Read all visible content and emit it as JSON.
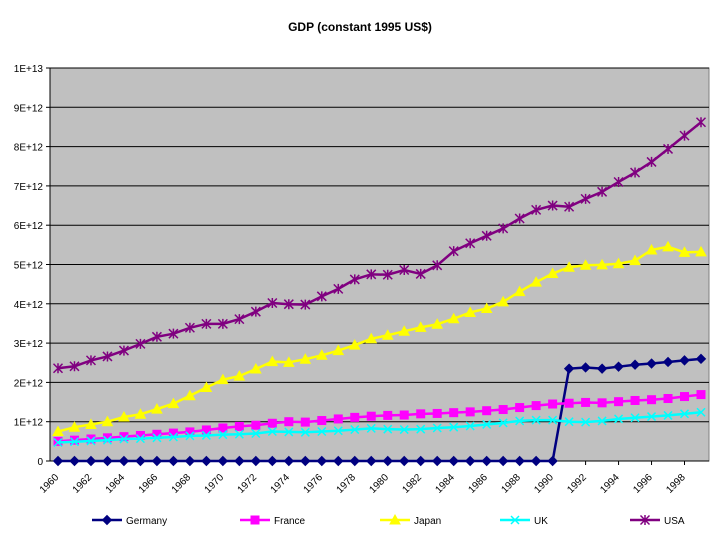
{
  "chart_data": {
    "type": "line",
    "title": "GDP (constant 1995 US$)",
    "xlabel": "",
    "ylabel": "",
    "ylim": [
      0,
      10000000000000
    ],
    "y_tick_labels": [
      "0",
      "1E+12",
      "2E+12",
      "3E+12",
      "4E+12",
      "5E+12",
      "6E+12",
      "7E+12",
      "8E+12",
      "9E+12",
      "1E+13"
    ],
    "x_tick_labels": [
      "1960",
      "1962",
      "1964",
      "1966",
      "1968",
      "1970",
      "1972",
      "1974",
      "1976",
      "1978",
      "1980",
      "1982",
      "1984",
      "1986",
      "1988",
      "1990",
      "1992",
      "1994",
      "1996",
      "1998"
    ],
    "grid": "horizontal",
    "legend_position": "bottom",
    "x": [
      1960,
      1961,
      1962,
      1963,
      1964,
      1965,
      1966,
      1967,
      1968,
      1969,
      1970,
      1971,
      1972,
      1973,
      1974,
      1975,
      1976,
      1977,
      1978,
      1979,
      1980,
      1981,
      1982,
      1983,
      1984,
      1985,
      1986,
      1987,
      1988,
      1989,
      1990,
      1991,
      1992,
      1993,
      1994,
      1995,
      1996,
      1997,
      1998,
      1999
    ],
    "series": [
      {
        "name": "Germany",
        "color": "#000080",
        "marker": "diamond",
        "values": [
          0,
          0,
          0,
          0,
          0,
          0,
          0,
          0,
          0,
          0,
          0,
          0,
          0,
          0,
          0,
          0,
          0,
          0,
          0,
          0,
          0,
          0,
          0,
          0,
          0,
          0,
          0,
          0,
          0,
          0,
          0,
          2350000000000.0,
          2380000000000.0,
          2350000000000.0,
          2400000000000.0,
          2450000000000.0,
          2480000000000.0,
          2520000000000.0,
          2560000000000.0,
          2600000000000.0
        ]
      },
      {
        "name": "France",
        "color": "#FF00FF",
        "marker": "square",
        "values": [
          500000000000.0,
          530000000000.0,
          560000000000.0,
          590000000000.0,
          620000000000.0,
          650000000000.0,
          680000000000.0,
          710000000000.0,
          740000000000.0,
          790000000000.0,
          840000000000.0,
          880000000000.0,
          910000000000.0,
          960000000000.0,
          1000000000000.0,
          990000000000.0,
          1030000000000.0,
          1070000000000.0,
          1110000000000.0,
          1140000000000.0,
          1160000000000.0,
          1170000000000.0,
          1200000000000.0,
          1210000000000.0,
          1230000000000.0,
          1250000000000.0,
          1280000000000.0,
          1310000000000.0,
          1360000000000.0,
          1410000000000.0,
          1450000000000.0,
          1470000000000.0,
          1490000000000.0,
          1480000000000.0,
          1510000000000.0,
          1540000000000.0,
          1560000000000.0,
          1590000000000.0,
          1640000000000.0,
          1690000000000.0
        ]
      },
      {
        "name": "Japan",
        "color": "#FFFF00",
        "marker": "triangle",
        "values": [
          750000000000.0,
          860000000000.0,
          930000000000.0,
          1000000000000.0,
          1120000000000.0,
          1190000000000.0,
          1320000000000.0,
          1460000000000.0,
          1660000000000.0,
          1870000000000.0,
          2070000000000.0,
          2160000000000.0,
          2340000000000.0,
          2530000000000.0,
          2510000000000.0,
          2590000000000.0,
          2690000000000.0,
          2810000000000.0,
          2950000000000.0,
          3110000000000.0,
          3200000000000.0,
          3300000000000.0,
          3400000000000.0,
          3480000000000.0,
          3620000000000.0,
          3780000000000.0,
          3880000000000.0,
          4050000000000.0,
          4310000000000.0,
          4550000000000.0,
          4770000000000.0,
          4930000000000.0,
          4980000000000.0,
          4990000000000.0,
          5020000000000.0,
          5100000000000.0,
          5370000000000.0,
          5450000000000.0,
          5310000000000.0,
          5320000000000.0
        ]
      },
      {
        "name": "UK",
        "color": "#00FFFF",
        "marker": "x",
        "values": [
          470000000000.0,
          490000000000.0,
          510000000000.0,
          530000000000.0,
          560000000000.0,
          570000000000.0,
          590000000000.0,
          610000000000.0,
          640000000000.0,
          650000000000.0,
          670000000000.0,
          680000000000.0,
          700000000000.0,
          750000000000.0,
          740000000000.0,
          730000000000.0,
          750000000000.0,
          770000000000.0,
          800000000000.0,
          830000000000.0,
          810000000000.0,
          800000000000.0,
          810000000000.0,
          840000000000.0,
          860000000000.0,
          890000000000.0,
          930000000000.0,
          970000000000.0,
          1020000000000.0,
          1040000000000.0,
          1040000000000.0,
          1000000000000.0,
          990000000000.0,
          1020000000000.0,
          1070000000000.0,
          1100000000000.0,
          1130000000000.0,
          1160000000000.0,
          1200000000000.0,
          1240000000000.0
        ]
      },
      {
        "name": "USA",
        "color": "#800080",
        "marker": "star",
        "values": [
          2360000000000.0,
          2410000000000.0,
          2560000000000.0,
          2660000000000.0,
          2810000000000.0,
          2980000000000.0,
          3160000000000.0,
          3240000000000.0,
          3390000000000.0,
          3490000000000.0,
          3490000000000.0,
          3610000000000.0,
          3800000000000.0,
          4020000000000.0,
          3990000000000.0,
          3980000000000.0,
          4190000000000.0,
          4380000000000.0,
          4620000000000.0,
          4750000000000.0,
          4740000000000.0,
          4860000000000.0,
          4760000000000.0,
          4980000000000.0,
          5340000000000.0,
          5540000000000.0,
          5730000000000.0,
          5920000000000.0,
          6170000000000.0,
          6390000000000.0,
          6500000000000.0,
          6470000000000.0,
          6670000000000.0,
          6850000000000.0,
          7100000000000.0,
          7340000000000.0,
          7610000000000.0,
          7940000000000.0,
          8280000000000.0,
          8620000000000.0
        ]
      }
    ]
  }
}
